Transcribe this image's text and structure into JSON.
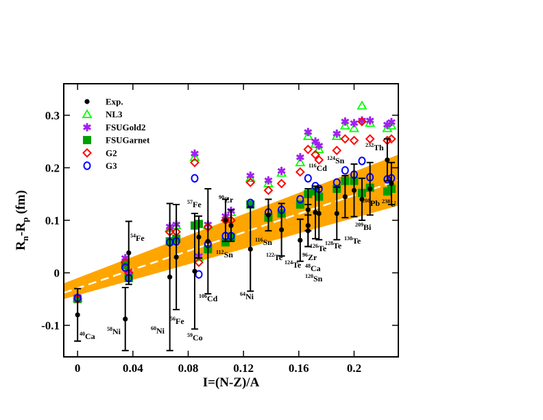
{
  "chart_data": {
    "type": "scatter",
    "xlabel": "I=(N-Z)/A",
    "ylabel_parts": [
      "R",
      "n",
      "-R",
      "p",
      " (fm)"
    ],
    "xlim": [
      -0.01,
      0.232
    ],
    "ylim": [
      -0.16,
      0.36
    ],
    "xticks": [
      0,
      0.04,
      0.08,
      0.12,
      0.16,
      0.2
    ],
    "yticks": [
      -0.1,
      0,
      0.1,
      0.2,
      0.3
    ],
    "legend": "upper left",
    "fit": {
      "color": "#ffa500",
      "line_color": "#ffffff",
      "x": [
        -0.01,
        0.232
      ],
      "center": [
        -0.038,
        0.176
      ],
      "lower": [
        -0.05,
        0.128
      ],
      "upper": [
        -0.02,
        0.225
      ]
    },
    "series": [
      {
        "name": "NL3",
        "color": "#00ff00",
        "marker": "triangle",
        "x": [
          0,
          0.0345,
          0.037,
          0.0667,
          0.0714,
          0.0847,
          0.0877,
          0.0943,
          0.107,
          0.111,
          0.125,
          0.138,
          0.1475,
          0.161,
          0.1667,
          0.172,
          0.1746,
          0.1875,
          0.1935,
          0.2,
          0.2057,
          0.2115,
          0.224,
          0.227
        ],
        "values": [
          -0.048,
          0.025,
          0.0,
          0.085,
          0.09,
          0.22,
          0.03,
          0.09,
          0.105,
          0.115,
          0.18,
          0.17,
          0.19,
          0.21,
          0.26,
          0.245,
          0.235,
          0.26,
          0.28,
          0.275,
          0.318,
          0.285,
          0.275,
          0.28
        ]
      },
      {
        "name": "FSUGold2",
        "color": "#a020f0",
        "marker": "asterisk",
        "x": [
          0,
          0.0345,
          0.037,
          0.0667,
          0.0714,
          0.0847,
          0.0877,
          0.0943,
          0.107,
          0.111,
          0.125,
          0.138,
          0.1475,
          0.161,
          0.1667,
          0.172,
          0.1746,
          0.1875,
          0.1935,
          0.2,
          0.2057,
          0.2115,
          0.224,
          0.227
        ],
        "values": [
          -0.046,
          0.028,
          0.003,
          0.088,
          0.092,
          0.227,
          0.032,
          0.092,
          0.108,
          0.118,
          0.185,
          0.176,
          0.194,
          0.22,
          0.268,
          0.25,
          0.242,
          0.265,
          0.288,
          0.285,
          0.29,
          0.29,
          0.282,
          0.287
        ]
      },
      {
        "name": "FSUGarnet",
        "color": "#00a000",
        "marker": "square",
        "x": [
          0,
          0.0345,
          0.037,
          0.0667,
          0.0714,
          0.0847,
          0.0877,
          0.0943,
          0.107,
          0.111,
          0.125,
          0.138,
          0.1475,
          0.161,
          0.1667,
          0.172,
          0.1746,
          0.1875,
          0.1935,
          0.2,
          0.2057,
          0.2115,
          0.224,
          0.227
        ],
        "values": [
          -0.05,
          0.015,
          -0.01,
          0.06,
          0.065,
          0.09,
          0.093,
          0.045,
          0.058,
          0.068,
          0.13,
          0.105,
          0.113,
          0.13,
          0.15,
          0.155,
          0.145,
          0.16,
          0.175,
          0.175,
          0.152,
          0.162,
          0.155,
          0.16
        ]
      },
      {
        "name": "G2",
        "color": "#ff0000",
        "marker": "diamond",
        "x": [
          0,
          0.0345,
          0.037,
          0.0667,
          0.0714,
          0.0847,
          0.0877,
          0.0943,
          0.107,
          0.111,
          0.125,
          0.138,
          0.1475,
          0.161,
          0.1667,
          0.172,
          0.1746,
          0.1875,
          0.1935,
          0.2,
          0.2057,
          0.2115,
          0.224,
          0.227
        ],
        "values": [
          -0.05,
          0.02,
          0.0,
          0.078,
          0.078,
          0.21,
          0.02,
          0.087,
          0.1,
          0.1,
          0.172,
          0.157,
          0.17,
          0.192,
          0.235,
          0.225,
          0.215,
          0.233,
          0.255,
          0.252,
          0.288,
          0.255,
          0.252,
          0.255
        ]
      },
      {
        "name": "G3",
        "color": "#0000ff",
        "marker": "circle",
        "x": [
          0,
          0.0345,
          0.037,
          0.0667,
          0.0714,
          0.0847,
          0.0877,
          0.0943,
          0.107,
          0.111,
          0.125,
          0.138,
          0.1475,
          0.161,
          0.1667,
          0.172,
          0.1746,
          0.1875,
          0.1935,
          0.2,
          0.2057,
          0.2115,
          0.224,
          0.227
        ],
        "values": [
          -0.048,
          0.01,
          -0.01,
          0.058,
          0.06,
          0.18,
          -0.003,
          0.055,
          0.07,
          0.07,
          0.133,
          0.115,
          0.12,
          0.14,
          0.18,
          0.165,
          0.16,
          0.172,
          0.195,
          0.187,
          0.213,
          0.182,
          0.178,
          0.18
        ]
      },
      {
        "name": "Exp.",
        "color": "#000000",
        "marker": "dot",
        "x": [
          0,
          0.0345,
          0.037,
          0.0667,
          0.0714,
          0.0847,
          0.0877,
          0.0943,
          0.107,
          0.111,
          0.125,
          0.138,
          0.1475,
          0.161,
          0.1667,
          0.1667,
          0.1667,
          0.172,
          0.1746,
          0.1875,
          0.1935,
          0.2,
          0.2057,
          0.2115,
          0.224,
          0.227
        ],
        "values": [
          -0.08,
          -0.088,
          0.038,
          -0.008,
          0.03,
          0.003,
          0.068,
          0.06,
          0.1,
          0.09,
          0.045,
          0.11,
          0.082,
          0.062,
          0.12,
          0.09,
          0.08,
          0.115,
          0.113,
          0.113,
          0.145,
          0.157,
          0.14,
          0.16,
          0.215,
          0.17
        ],
        "errors": [
          0.05,
          0.06,
          0.06,
          0.14,
          0.1,
          0.11,
          0.04,
          0.1,
          0.04,
          0.03,
          0.08,
          0.03,
          0.05,
          0.04,
          0.04,
          0.04,
          0.03,
          0.05,
          0.05,
          0.05,
          0.04,
          0.05,
          0.04,
          0.05,
          0.04,
          0.04
        ]
      }
    ],
    "annotations": [
      {
        "mass": "40",
        "element": "Ca"
      },
      {
        "mass": "58",
        "element": "Ni"
      },
      {
        "mass": "54",
        "element": "Fe"
      },
      {
        "mass": "60",
        "element": "Ni"
      },
      {
        "mass": "56",
        "element": "Fe"
      },
      {
        "mass": "59",
        "element": "Co"
      },
      {
        "mass": "57",
        "element": "Fe"
      },
      {
        "mass": "106",
        "element": "Cd"
      },
      {
        "mass": "90",
        "element": "Zr"
      },
      {
        "mass": "112",
        "element": "Sn"
      },
      {
        "mass": "64",
        "element": "Ni"
      },
      {
        "mass": "116",
        "element": "Sn"
      },
      {
        "mass": "122",
        "element": "Te"
      },
      {
        "mass": "124",
        "element": "Te"
      },
      {
        "mass": "96",
        "element": "Zr"
      },
      {
        "mass": "48",
        "element": "Ca"
      },
      {
        "mass": "120",
        "element": "Sn"
      },
      {
        "mass": "126",
        "element": "Te"
      },
      {
        "mass": "128",
        "element": "Te"
      },
      {
        "mass": "116",
        "element": "Cd"
      },
      {
        "mass": "124",
        "element": "Sn"
      },
      {
        "mass": "130",
        "element": "Te"
      },
      {
        "mass": "209",
        "element": "Bi"
      },
      {
        "mass": "208",
        "element": "Pb"
      },
      {
        "mass": "232",
        "element": "Th"
      },
      {
        "mass": "238",
        "element": "U"
      }
    ]
  }
}
